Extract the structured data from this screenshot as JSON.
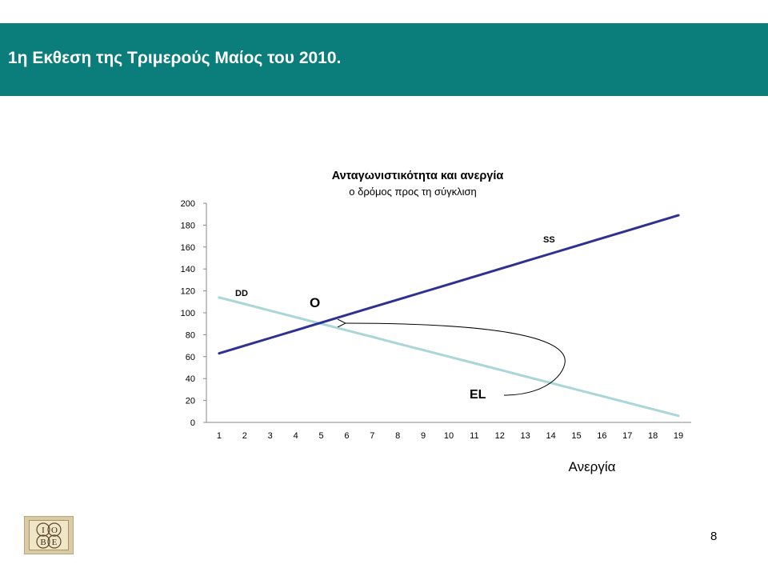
{
  "slide": {
    "title": "1η Εκθεση της Τριμερούς Μαίος του 2010.",
    "page_number": "8",
    "logo_text": "IOBE",
    "colors": {
      "header_band": "#0b7d7a",
      "header_text": "#ffffff"
    }
  },
  "chart_data": {
    "type": "line",
    "title": "Ανταγωνιστικότητα και ανεργία",
    "subtitle": "ο δρόμος προς τη σύγκλιση",
    "xlabel": "Ανεργία",
    "ylabel": "",
    "x": [
      1,
      2,
      3,
      4,
      5,
      6,
      7,
      8,
      9,
      10,
      11,
      12,
      13,
      14,
      15,
      16,
      17,
      18,
      19
    ],
    "ylim": [
      0,
      200
    ],
    "yticks": [
      0,
      20,
      40,
      60,
      80,
      100,
      120,
      140,
      160,
      180,
      200
    ],
    "series": [
      {
        "name": "SS",
        "color": "#2e3192",
        "values": [
          63,
          70,
          77,
          84,
          91,
          98,
          105,
          112,
          119,
          126,
          133,
          140,
          147,
          154,
          161,
          168,
          175,
          182,
          189
        ]
      },
      {
        "name": "DD",
        "color": "#a9d6d8",
        "values": [
          114,
          108,
          102,
          96,
          90,
          84,
          78,
          72,
          66,
          60,
          54,
          48,
          42,
          36,
          30,
          24,
          18,
          12,
          6
        ]
      }
    ],
    "annotations": {
      "intersection_label": "O",
      "start_label": "EL"
    },
    "grid": false,
    "legend": "none"
  }
}
